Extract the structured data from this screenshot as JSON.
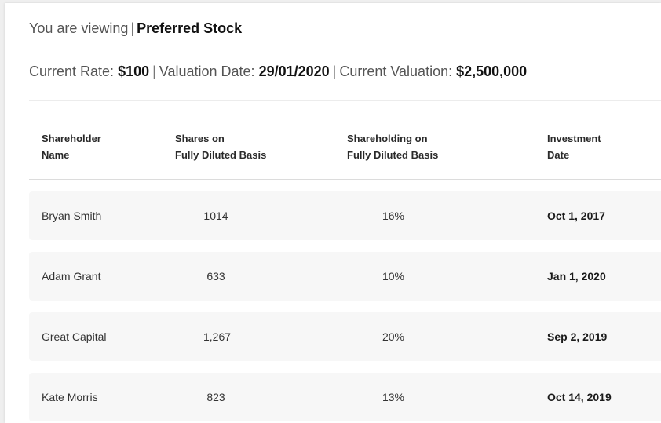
{
  "header": {
    "viewing_prefix": "You are viewing",
    "separator": "|",
    "stock_name": "Preferred Stock"
  },
  "summary": {
    "rate_label": "Current Rate:",
    "rate_value": "$100",
    "valuation_date_label": "Valuation Date:",
    "valuation_date_value": "29/01/2020",
    "valuation_label": "Current Valuation:",
    "valuation_value": "$2,500,000"
  },
  "table": {
    "columns": {
      "name_line1": "Shareholder",
      "name_line2": "Name",
      "shares_line1": "Shares on",
      "shares_line2": "Fully Diluted Basis",
      "pct_line1": "Shareholding on",
      "pct_line2": "Fully Diluted Basis",
      "date_line1": "Investment",
      "date_line2": "Date"
    },
    "rows": [
      {
        "name": "Bryan Smith",
        "shares": "1014",
        "pct": "16%",
        "date": "Oct 1, 2017"
      },
      {
        "name": "Adam Grant",
        "shares": "633",
        "pct": "10%",
        "date": "Jan 1, 2020"
      },
      {
        "name": "Great Capital",
        "shares": "1,267",
        "pct": "20%",
        "date": "Sep 2, 2019"
      },
      {
        "name": "Kate Morris",
        "shares": "823",
        "pct": "13%",
        "date": "Oct 14, 2019"
      }
    ]
  }
}
